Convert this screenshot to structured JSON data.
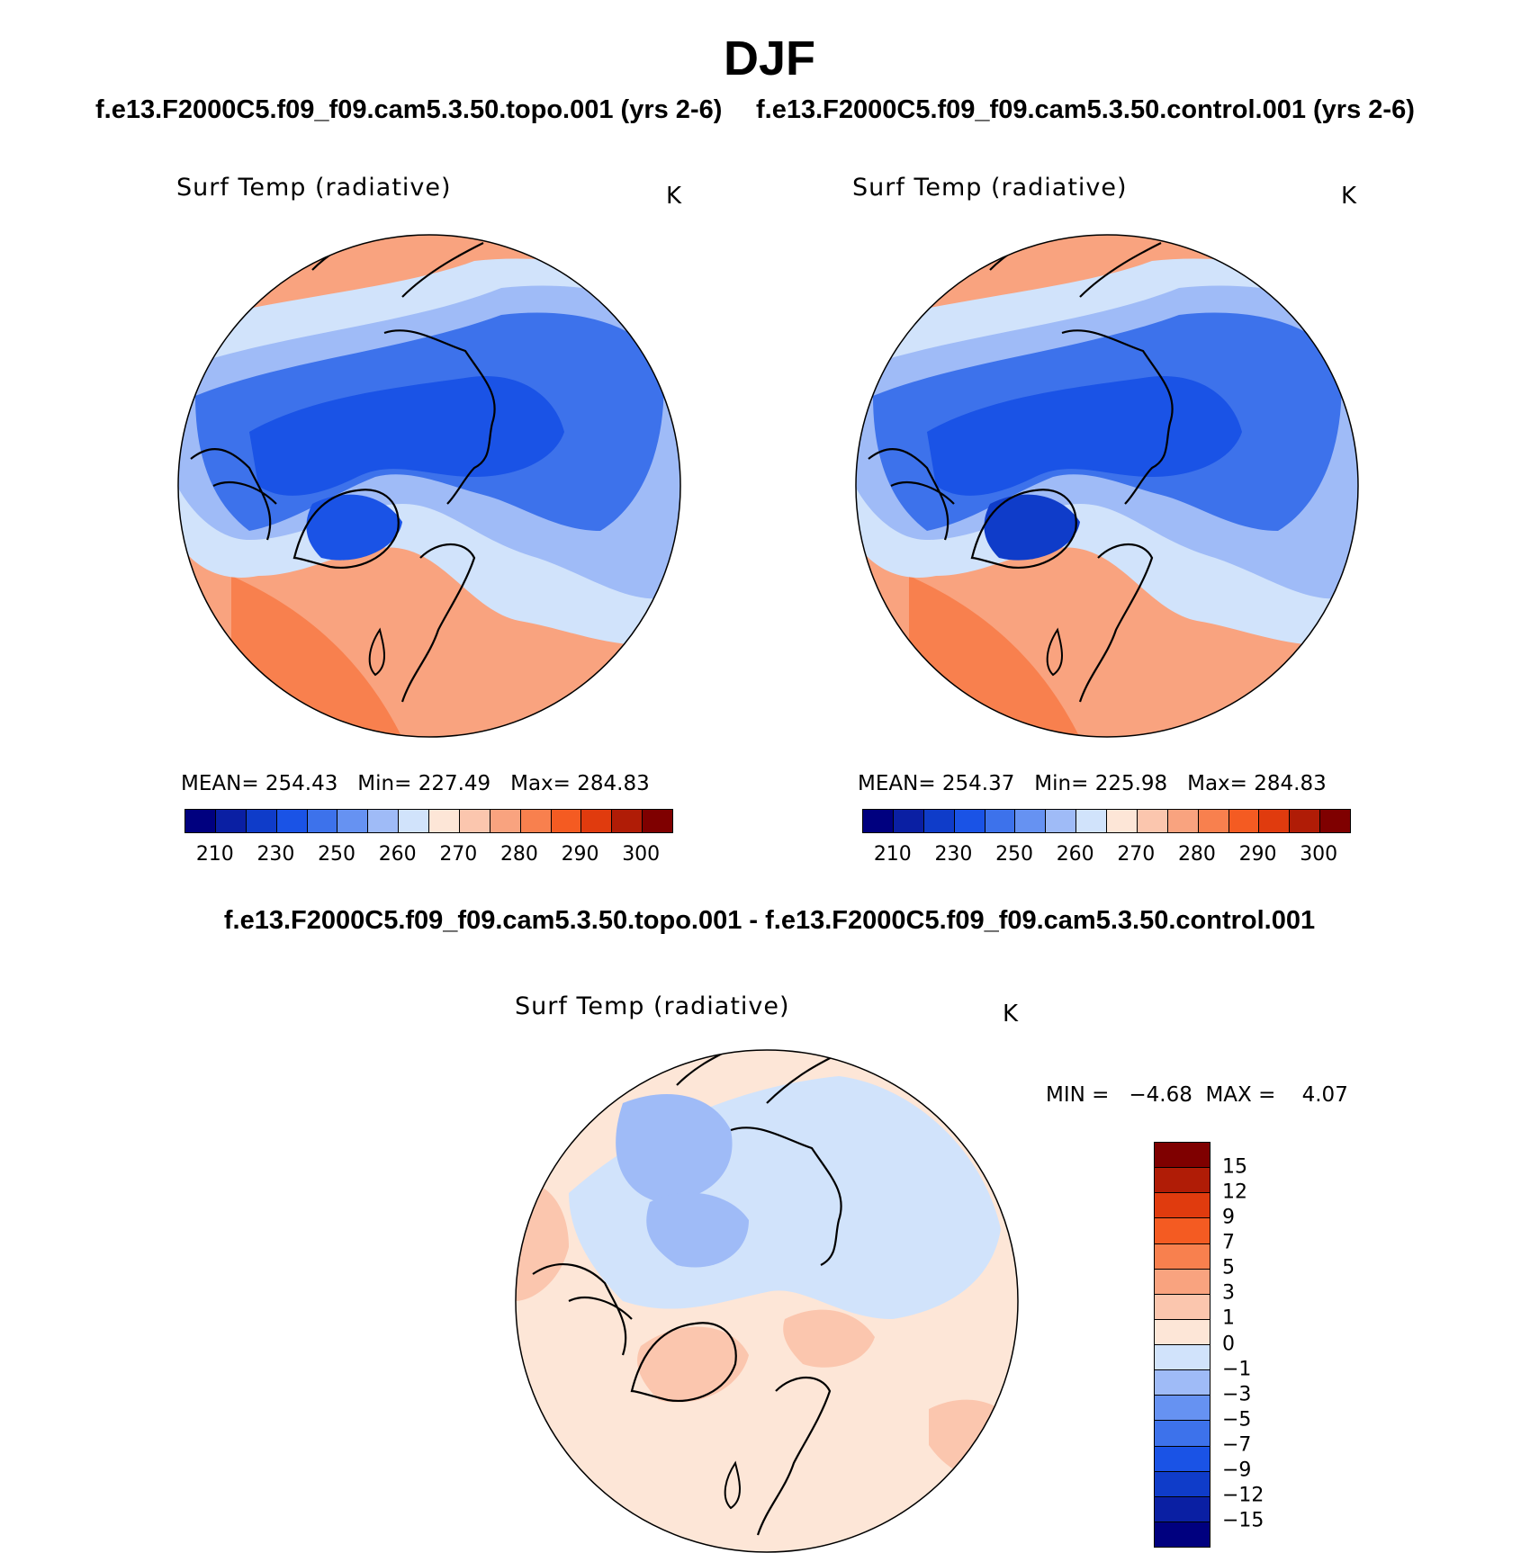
{
  "season": "DJF",
  "panels": [
    {
      "run_title": "f.e13.F2000C5.f09_f09.cam5.3.50.topo.001 (yrs 2-6)",
      "variable": "Surf Temp (radiative)",
      "units": "K",
      "stats_text": "MEAN= 254.43   Min= 227.49   Max= 284.83"
    },
    {
      "run_title": "f.e13.F2000C5.f09_f09.cam5.3.50.control.001 (yrs 2-6)",
      "variable": "Surf Temp (radiative)",
      "units": "K",
      "stats_text": "MEAN= 254.37   Min= 225.98   Max= 284.83"
    }
  ],
  "difference_panel": {
    "title": "f.e13.F2000C5.f09_f09.cam5.3.50.topo.001 - f.e13.F2000C5.f09_f09.cam5.3.50.control.001",
    "variable": "Surf Temp (radiative)",
    "units": "K",
    "stats_text": "MIN =   −4.68  MAX =    4.07"
  },
  "colorbar_abs": {
    "colors": [
      "#00007f",
      "#0a1fa3",
      "#0f3cc9",
      "#1a53e6",
      "#3d72eb",
      "#6692f2",
      "#9fbbf7",
      "#d1e3fb",
      "#fde6d7",
      "#fbc6ae",
      "#f9a37f",
      "#f8804e",
      "#f45b22",
      "#e03b0e",
      "#b01c06",
      "#7f0000"
    ],
    "labels": [
      "210",
      "230",
      "250",
      "260",
      "270",
      "280",
      "290",
      "300"
    ]
  },
  "colorbar_diff": {
    "colors": [
      "#7f0000",
      "#b01c06",
      "#e03b0e",
      "#f45b22",
      "#f8804e",
      "#f9a37f",
      "#fbc6ae",
      "#fde6d7",
      "#d1e3fb",
      "#9fbbf7",
      "#6692f2",
      "#3d72eb",
      "#1a53e6",
      "#0f3cc9",
      "#0a1fa3",
      "#00007f"
    ],
    "labels": [
      "15",
      "12",
      "9",
      "7",
      "5",
      "3",
      "1",
      "0",
      "−1",
      "−3",
      "−5",
      "−7",
      "−9",
      "−12",
      "−15"
    ]
  }
}
